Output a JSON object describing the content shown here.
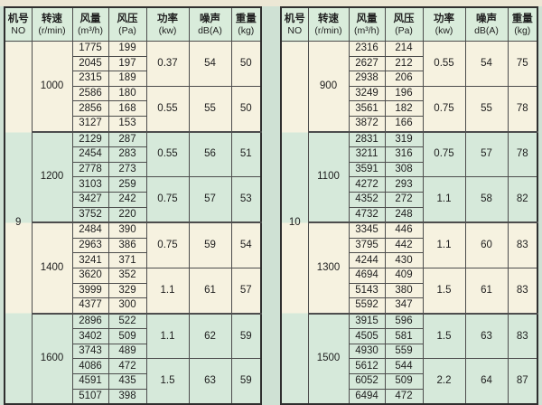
{
  "colors": {
    "page_bg": "#cfe1d4",
    "top_strip": "#ece7d5",
    "header_bg": "#d9ecdb",
    "band_cream": "#f6f2e0",
    "band_green": "#d6e9da",
    "border_dark": "#2f2f2f",
    "grid": "#4d4d4d",
    "text": "#1e1e1e"
  },
  "header_cols": [
    {
      "name": "no",
      "line1": "机号",
      "line2": "NO"
    },
    {
      "name": "speed",
      "line1": "转速",
      "line2": "(r/min)"
    },
    {
      "name": "flow",
      "line1": "风量",
      "line2": "(m³/h)"
    },
    {
      "name": "pressure",
      "line1": "风压",
      "line2": "(Pa)"
    },
    {
      "name": "power",
      "line1": "功率",
      "line2": "(kw)"
    },
    {
      "name": "noise",
      "line1": "噪声",
      "line2": "dB(A)"
    },
    {
      "name": "weight",
      "line1": "重量",
      "line2": "(kg)"
    }
  ],
  "tables": [
    {
      "no": "9",
      "groups": [
        {
          "speed": "1000",
          "band": "cream",
          "subgroups": [
            {
              "power": "0.37",
              "noise": "54",
              "weight": "50",
              "rows": [
                {
                  "flow": "1775",
                  "pressure": "199"
                },
                {
                  "flow": "2045",
                  "pressure": "197"
                },
                {
                  "flow": "2315",
                  "pressure": "189"
                }
              ]
            },
            {
              "power": "0.55",
              "noise": "55",
              "weight": "50",
              "rows": [
                {
                  "flow": "2586",
                  "pressure": "180"
                },
                {
                  "flow": "2856",
                  "pressure": "168"
                },
                {
                  "flow": "3127",
                  "pressure": "153"
                }
              ]
            }
          ]
        },
        {
          "speed": "1200",
          "band": "green",
          "subgroups": [
            {
              "power": "0.55",
              "noise": "56",
              "weight": "51",
              "rows": [
                {
                  "flow": "2129",
                  "pressure": "287"
                },
                {
                  "flow": "2454",
                  "pressure": "283"
                },
                {
                  "flow": "2778",
                  "pressure": "273"
                }
              ]
            },
            {
              "power": "0.75",
              "noise": "57",
              "weight": "53",
              "rows": [
                {
                  "flow": "3103",
                  "pressure": "259"
                },
                {
                  "flow": "3427",
                  "pressure": "242"
                },
                {
                  "flow": "3752",
                  "pressure": "220"
                }
              ]
            }
          ]
        },
        {
          "speed": "1400",
          "band": "cream",
          "subgroups": [
            {
              "power": "0.75",
              "noise": "59",
              "weight": "54",
              "rows": [
                {
                  "flow": "2484",
                  "pressure": "390"
                },
                {
                  "flow": "2963",
                  "pressure": "386"
                },
                {
                  "flow": "3241",
                  "pressure": "371"
                }
              ]
            },
            {
              "power": "1.1",
              "noise": "61",
              "weight": "57",
              "rows": [
                {
                  "flow": "3620",
                  "pressure": "352"
                },
                {
                  "flow": "3999",
                  "pressure": "329"
                },
                {
                  "flow": "4377",
                  "pressure": "300"
                }
              ]
            }
          ]
        },
        {
          "speed": "1600",
          "band": "green",
          "subgroups": [
            {
              "power": "1.1",
              "noise": "62",
              "weight": "59",
              "rows": [
                {
                  "flow": "2896",
                  "pressure": "522"
                },
                {
                  "flow": "3402",
                  "pressure": "509"
                },
                {
                  "flow": "3743",
                  "pressure": "489"
                }
              ]
            },
            {
              "power": "1.5",
              "noise": "63",
              "weight": "59",
              "rows": [
                {
                  "flow": "4086",
                  "pressure": "472"
                },
                {
                  "flow": "4591",
                  "pressure": "435"
                },
                {
                  "flow": "5107",
                  "pressure": "398"
                }
              ]
            }
          ]
        }
      ]
    },
    {
      "no": "10",
      "groups": [
        {
          "speed": "900",
          "band": "cream",
          "subgroups": [
            {
              "power": "0.55",
              "noise": "54",
              "weight": "75",
              "rows": [
                {
                  "flow": "2316",
                  "pressure": "214"
                },
                {
                  "flow": "2627",
                  "pressure": "212"
                },
                {
                  "flow": "2938",
                  "pressure": "206"
                }
              ]
            },
            {
              "power": "0.75",
              "noise": "55",
              "weight": "78",
              "rows": [
                {
                  "flow": "3249",
                  "pressure": "196"
                },
                {
                  "flow": "3561",
                  "pressure": "182"
                },
                {
                  "flow": "3872",
                  "pressure": "166"
                }
              ]
            }
          ]
        },
        {
          "speed": "1100",
          "band": "green",
          "subgroups": [
            {
              "power": "0.75",
              "noise": "57",
              "weight": "78",
              "rows": [
                {
                  "flow": "2831",
                  "pressure": "319"
                },
                {
                  "flow": "3211",
                  "pressure": "316"
                },
                {
                  "flow": "3591",
                  "pressure": "308"
                }
              ]
            },
            {
              "power": "1.1",
              "noise": "58",
              "weight": "82",
              "rows": [
                {
                  "flow": "4272",
                  "pressure": "293"
                },
                {
                  "flow": "4352",
                  "pressure": "272"
                },
                {
                  "flow": "4732",
                  "pressure": "248"
                }
              ]
            }
          ]
        },
        {
          "speed": "1300",
          "band": "cream",
          "subgroups": [
            {
              "power": "1.1",
              "noise": "60",
              "weight": "83",
              "rows": [
                {
                  "flow": "3345",
                  "pressure": "446"
                },
                {
                  "flow": "3795",
                  "pressure": "442"
                },
                {
                  "flow": "4244",
                  "pressure": "430"
                }
              ]
            },
            {
              "power": "1.5",
              "noise": "61",
              "weight": "83",
              "rows": [
                {
                  "flow": "4694",
                  "pressure": "409"
                },
                {
                  "flow": "5143",
                  "pressure": "380"
                },
                {
                  "flow": "5592",
                  "pressure": "347"
                }
              ]
            }
          ]
        },
        {
          "speed": "1500",
          "band": "green",
          "subgroups": [
            {
              "power": "1.5",
              "noise": "63",
              "weight": "83",
              "rows": [
                {
                  "flow": "3915",
                  "pressure": "596"
                },
                {
                  "flow": "4505",
                  "pressure": "581"
                },
                {
                  "flow": "4930",
                  "pressure": "559"
                }
              ]
            },
            {
              "power": "2.2",
              "noise": "64",
              "weight": "87",
              "rows": [
                {
                  "flow": "5612",
                  "pressure": "544"
                },
                {
                  "flow": "6052",
                  "pressure": "509"
                },
                {
                  "flow": "6494",
                  "pressure": "472"
                }
              ]
            }
          ]
        }
      ]
    }
  ]
}
